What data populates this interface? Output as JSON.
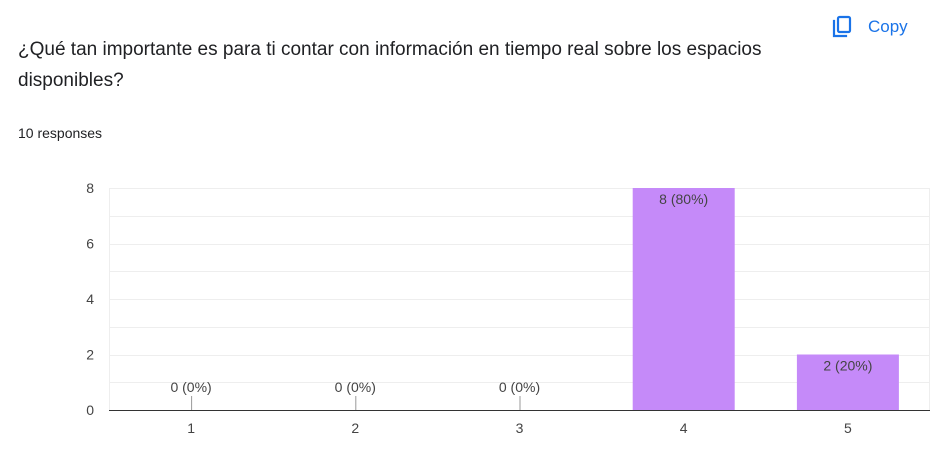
{
  "question": {
    "title": "¿Qué tan importante es para ti contar con información en tiempo real sobre los espacios disponibles?"
  },
  "copy_button": {
    "label": "Copy",
    "icon": "copy-icon",
    "color": "#1a73e8"
  },
  "response_count": "10 responses",
  "chart_data": {
    "type": "bar",
    "categories": [
      "1",
      "2",
      "3",
      "4",
      "5"
    ],
    "values": [
      0,
      0,
      0,
      8,
      2
    ],
    "data_labels": [
      "0 (0%)",
      "0 (0%)",
      "0 (0%)",
      "8 (80%)",
      "2 (20%)"
    ],
    "ylim": [
      0,
      8
    ],
    "yticks": [
      0,
      2,
      4,
      6,
      8
    ],
    "grid": true,
    "bar_color": "#c58af9",
    "title": "",
    "xlabel": "",
    "ylabel": ""
  }
}
